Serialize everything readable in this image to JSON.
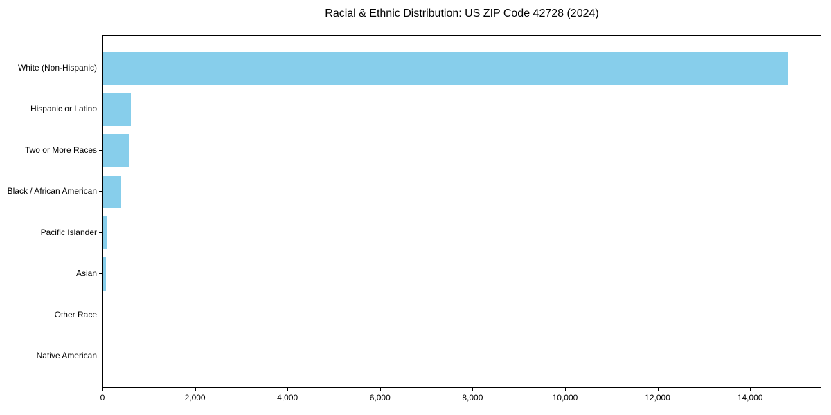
{
  "chart_data": {
    "type": "bar",
    "orientation": "horizontal",
    "title": "Racial & Ethnic Distribution: US ZIP Code 42728 (2024)",
    "categories": [
      "White (Non-Hispanic)",
      "Hispanic or Latino",
      "Two or More Races",
      "Black / African American",
      "Pacific Islander",
      "Asian",
      "Other Race",
      "Native American"
    ],
    "values": [
      14800,
      600,
      550,
      390,
      70,
      55,
      0,
      0
    ],
    "xlabel": "",
    "ylabel": "",
    "xlim": [
      0,
      15540
    ],
    "x_ticks": [
      0,
      2000,
      4000,
      6000,
      8000,
      10000,
      12000,
      14000
    ],
    "x_tick_labels": [
      "0",
      "2,000",
      "4,000",
      "6,000",
      "8,000",
      "10,000",
      "12,000",
      "14,000"
    ],
    "bar_color": "#87CEEB",
    "text_color": "#000000",
    "frame_color": "#000000",
    "grid": false,
    "legend": null
  }
}
